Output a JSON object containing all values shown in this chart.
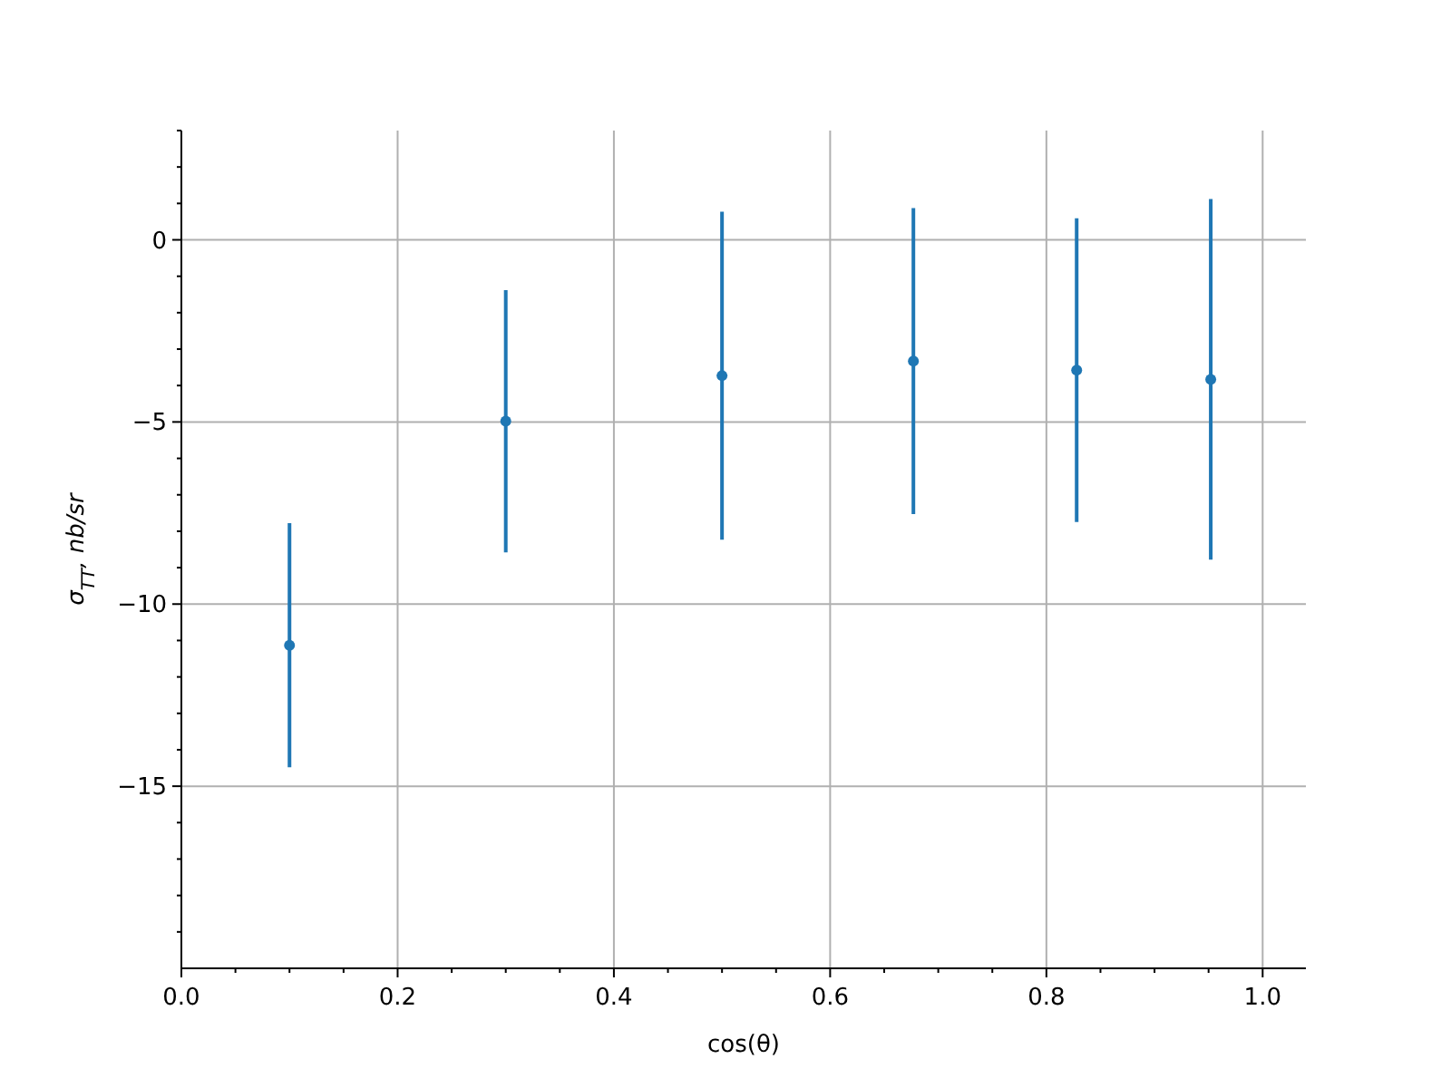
{
  "chart_data": {
    "type": "scatter",
    "xlabel": "cos(θ)",
    "ylabel": "σ$_{TT}$, nb/sr",
    "x": [
      0.1,
      0.3,
      0.5,
      0.677,
      0.828,
      0.952
    ],
    "series": [
      {
        "color": "#1f77b4",
        "values": [
          -11.13,
          -4.98,
          -3.73,
          -3.33,
          -3.58,
          -3.83
        ],
        "errors": [
          3.35,
          3.6,
          4.5,
          4.2,
          4.17,
          4.95
        ]
      }
    ],
    "marker": "circle",
    "grid": true,
    "xlim": [
      0,
      1.04
    ],
    "ylim": [
      -20,
      3
    ],
    "xticks": [
      {
        "value": 0,
        "label": "0.0"
      },
      {
        "value": 0.05,
        "label": null
      },
      {
        "value": 0.1,
        "label": null
      },
      {
        "value": 0.15,
        "label": null
      },
      {
        "value": 0.2,
        "label": "0.2"
      },
      {
        "value": 0.25,
        "label": null
      },
      {
        "value": 0.3,
        "label": null
      },
      {
        "value": 0.35,
        "label": null
      },
      {
        "value": 0.4,
        "label": "0.4"
      },
      {
        "value": 0.45,
        "label": null
      },
      {
        "value": 0.5,
        "label": null
      },
      {
        "value": 0.55,
        "label": null
      },
      {
        "value": 0.6,
        "label": "0.6"
      },
      {
        "value": 0.65,
        "label": null
      },
      {
        "value": 0.7,
        "label": null
      },
      {
        "value": 0.75,
        "label": null
      },
      {
        "value": 0.8,
        "label": "0.8"
      },
      {
        "value": 0.85,
        "label": null
      },
      {
        "value": 0.9,
        "label": null
      },
      {
        "value": 0.95,
        "label": null
      },
      {
        "value": 1,
        "label": "1.0"
      }
    ],
    "yticks": [
      {
        "value": -19,
        "label": null
      },
      {
        "value": -18,
        "label": null
      },
      {
        "value": -17,
        "label": null
      },
      {
        "value": -16,
        "label": null
      },
      {
        "value": -15,
        "label": "−15"
      },
      {
        "value": -14,
        "label": null
      },
      {
        "value": -13,
        "label": null
      },
      {
        "value": -12,
        "label": null
      },
      {
        "value": -11,
        "label": null
      },
      {
        "value": -10,
        "label": "−10"
      },
      {
        "value": -9,
        "label": null
      },
      {
        "value": -8,
        "label": null
      },
      {
        "value": -7,
        "label": null
      },
      {
        "value": -6,
        "label": null
      },
      {
        "value": -5,
        "label": "−5"
      },
      {
        "value": -4,
        "label": null
      },
      {
        "value": -3,
        "label": null
      },
      {
        "value": -2,
        "label": null
      },
      {
        "value": -1,
        "label": null
      },
      {
        "value": 0,
        "label": "0"
      },
      {
        "value": 1,
        "label": null
      },
      {
        "value": 2,
        "label": null
      },
      {
        "value": 3,
        "label": null
      }
    ]
  }
}
